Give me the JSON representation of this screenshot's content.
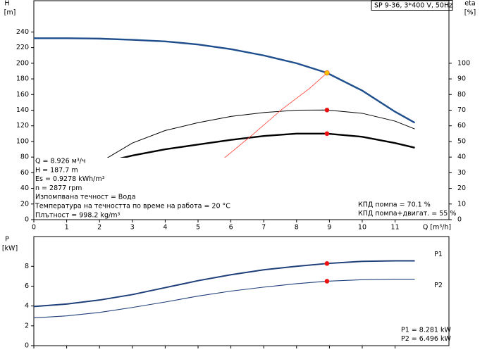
{
  "chart_data": [
    {
      "type": "line",
      "title": "SP 9-36, 3*400 V, 50Hz",
      "x_label": "Q [m³/h]",
      "y_label": "H",
      "y_unit": "[m]",
      "y2_label": "eta",
      "y2_unit": "[%]",
      "xlim": [
        0,
        12.64
      ],
      "xticks": [
        0,
        1,
        2,
        3,
        4,
        5,
        6,
        7,
        8,
        9,
        10,
        11
      ],
      "ylim": [
        0,
        280
      ],
      "yticks": [
        0,
        20,
        40,
        60,
        80,
        100,
        120,
        140,
        160,
        180,
        200,
        220,
        240
      ],
      "y2lim": [
        0,
        140
      ],
      "y2ticks": [
        0,
        10,
        20,
        30,
        40,
        50,
        60,
        70,
        80,
        90,
        100
      ],
      "series": [
        {
          "color": "#1f4e8c",
          "axis": "y",
          "x": [
            0,
            1,
            2,
            3,
            4,
            5,
            6,
            7,
            8,
            8.926,
            10,
            11,
            11.6
          ],
          "values": [
            232,
            232,
            231.5,
            230,
            228,
            224,
            218,
            210,
            200,
            187.7,
            165,
            138,
            124
          ]
        },
        {
          "color": "#000000",
          "axis": "y2",
          "x": [
            2.2,
            3,
            4,
            5,
            6,
            7,
            8,
            8.926,
            10,
            11,
            11.6
          ],
          "values": [
            39,
            49,
            57,
            62,
            66,
            68.5,
            70,
            70.1,
            68,
            63,
            58
          ]
        },
        {
          "color": "#000000",
          "axis": "y2",
          "x": [
            2.2,
            3,
            4,
            5,
            6,
            7,
            8,
            8.926,
            10,
            11,
            11.6
          ],
          "values": [
            37,
            41,
            45,
            48,
            51,
            53.5,
            55,
            55,
            53,
            49,
            46
          ]
        },
        {
          "color": "#ff3b30",
          "axis": "y",
          "x": [
            5.69,
            6.7,
            7.55,
            8.4,
            8.926
          ],
          "values": [
            75,
            110,
            141,
            168,
            187.7
          ]
        }
      ],
      "markers": [
        {
          "x": 8.926,
          "y": 187.7,
          "axis": "y",
          "color": "#f5c400"
        },
        {
          "x": 8.926,
          "y": 70.1,
          "axis": "y2",
          "color": "#ee1111"
        },
        {
          "x": 8.926,
          "y": 55,
          "axis": "y2",
          "color": "#ee1111"
        }
      ],
      "annotations": [
        "Q = 8.926 м³/ч",
        "H = 187.7 m",
        "Es = 0.9278 kWh/m³",
        "n = 2877 rpm",
        "Изпомпвана течност = Вода",
        "Температура на течността по време на работа = 20 °C",
        "Плътност = 998.2 kg/m³"
      ],
      "annotations_right": [
        "КПД помпа = 70.1 %",
        "КПД помпа+двигат. = 55 %"
      ]
    },
    {
      "type": "line",
      "y_label": "P",
      "y_unit": "[kW]",
      "xlim": [
        0,
        12.64
      ],
      "ylim": [
        0,
        11
      ],
      "yticks": [
        0,
        2,
        4,
        6,
        8
      ],
      "series": [
        {
          "name": "P1",
          "color": "#1f3f7a",
          "x": [
            0,
            1,
            2,
            3,
            4,
            5,
            6,
            7,
            8,
            8.926,
            10,
            11,
            11.6
          ],
          "values": [
            3.95,
            4.2,
            4.6,
            5.15,
            5.85,
            6.55,
            7.15,
            7.65,
            8.0,
            8.281,
            8.5,
            8.55,
            8.55
          ]
        },
        {
          "name": "P2",
          "color": "#1f3f7a",
          "x": [
            0,
            1,
            2,
            3,
            4,
            5,
            6,
            7,
            8,
            8.926,
            10,
            11,
            11.6
          ],
          "values": [
            2.8,
            3.0,
            3.35,
            3.85,
            4.4,
            5.0,
            5.5,
            5.9,
            6.25,
            6.496,
            6.65,
            6.7,
            6.7
          ]
        }
      ],
      "markers": [
        {
          "x": 8.926,
          "y": 8.281,
          "axis": "y",
          "color": "#ee1111"
        },
        {
          "x": 8.926,
          "y": 6.496,
          "axis": "y",
          "color": "#ee1111"
        }
      ],
      "annotations_right": [
        "P1 = 8.281 kW",
        "P2 = 6.496 kW"
      ]
    }
  ]
}
